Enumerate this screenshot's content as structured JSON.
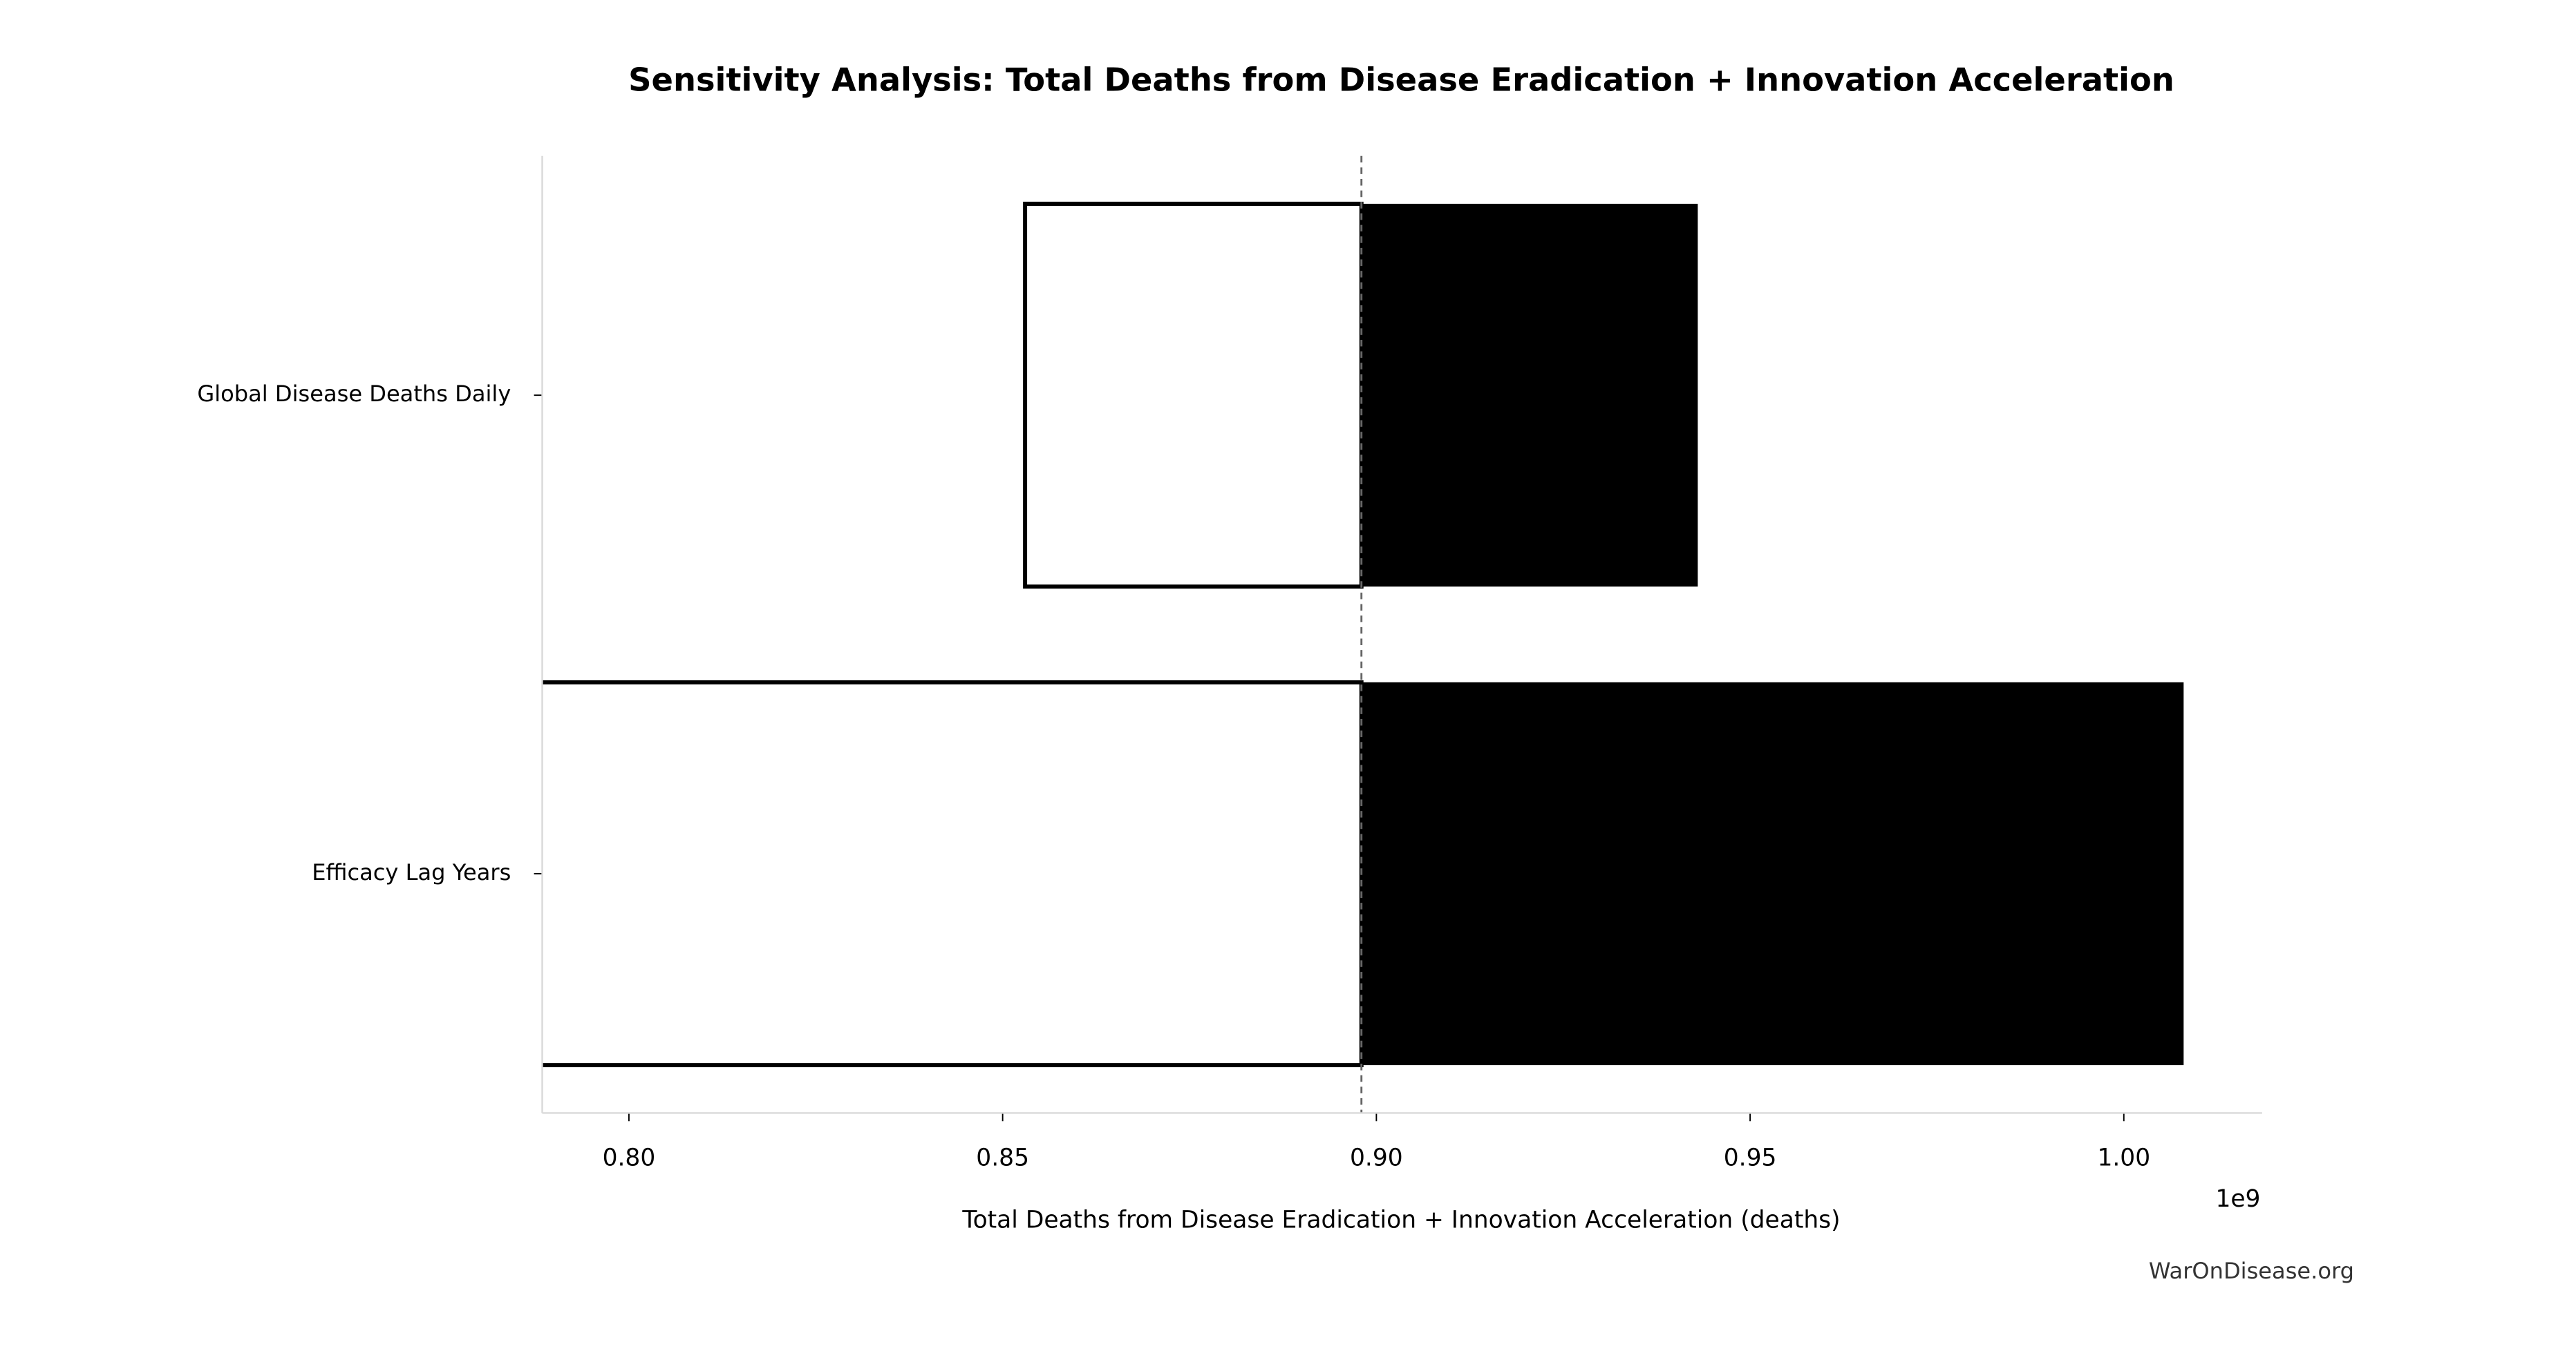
{
  "chart_data": {
    "type": "tornado",
    "title": "Sensitivity Analysis: Total Deaths from Disease Eradication + Innovation Acceleration",
    "x_label": "Total Deaths from Disease Eradication + Innovation Acceleration (deaths)",
    "x_offset_label": "1e9",
    "categories": [
      "Global Disease Deaths Daily",
      "Efficacy Lag Years"
    ],
    "baseline": 0.898,
    "low": [
      0.853,
      0.788
    ],
    "high": [
      0.943,
      1.008
    ],
    "low_color": "#ffffff",
    "high_color": "#000000",
    "xlim": [
      0.7884,
      1.0185
    ],
    "xticks": [
      {
        "value": 0.8,
        "label": "0.80"
      },
      {
        "value": 0.85,
        "label": "0.85"
      },
      {
        "value": 0.9,
        "label": "0.90"
      },
      {
        "value": 0.95,
        "label": "0.95"
      },
      {
        "value": 1.0,
        "label": "1.00"
      }
    ],
    "watermark": "WarOnDisease.org"
  }
}
